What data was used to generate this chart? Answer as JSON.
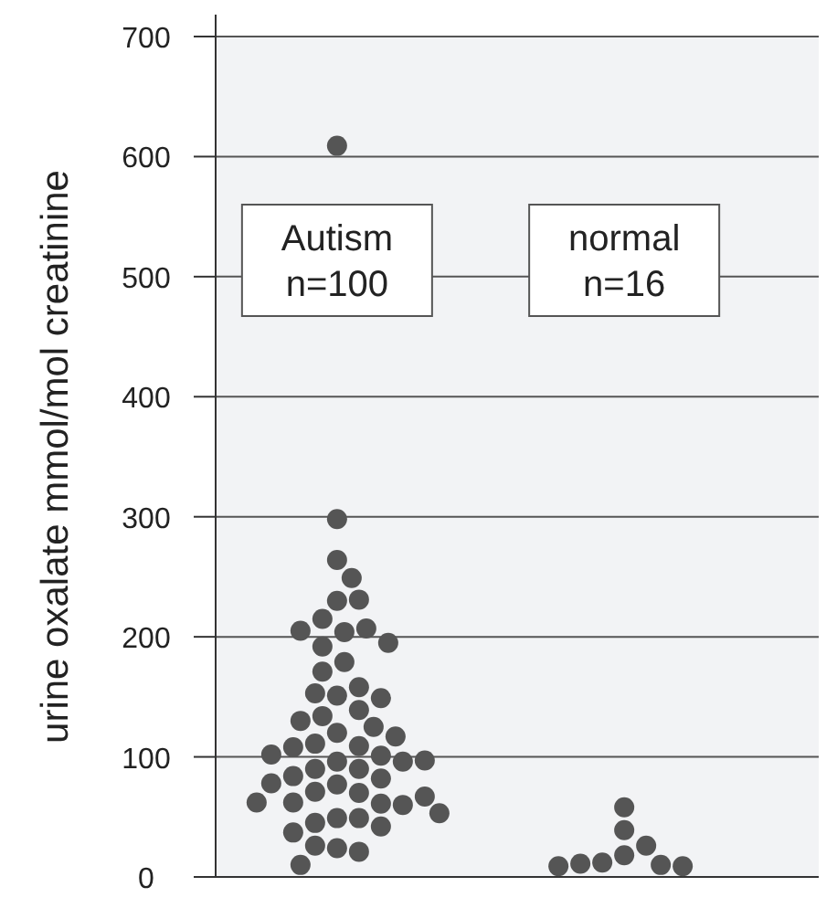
{
  "chart_data": {
    "type": "scatter",
    "ylabel": "urine oxalate mmol/mol creatinine",
    "categories": [
      "Autism n=100",
      "normal n=16"
    ],
    "ylim": [
      0,
      700
    ],
    "yticks": [
      0,
      100,
      200,
      300,
      400,
      500,
      600,
      700
    ],
    "grid": "y",
    "marker": "circle",
    "series": [
      {
        "color": "#555555",
        "x": [
          "Autism n=100",
          "Autism n=100",
          "Autism n=100",
          "Autism n=100",
          "Autism n=100",
          "Autism n=100",
          "Autism n=100",
          "Autism n=100",
          "Autism n=100",
          "Autism n=100",
          "Autism n=100",
          "Autism n=100",
          "Autism n=100",
          "Autism n=100",
          "Autism n=100",
          "Autism n=100",
          "Autism n=100",
          "Autism n=100",
          "Autism n=100",
          "Autism n=100",
          "Autism n=100",
          "Autism n=100",
          "Autism n=100",
          "Autism n=100",
          "Autism n=100",
          "Autism n=100",
          "Autism n=100",
          "Autism n=100",
          "Autism n=100",
          "Autism n=100",
          "Autism n=100",
          "Autism n=100",
          "Autism n=100",
          "Autism n=100",
          "Autism n=100",
          "Autism n=100",
          "Autism n=100",
          "Autism n=100",
          "Autism n=100",
          "Autism n=100",
          "Autism n=100",
          "Autism n=100",
          "Autism n=100",
          "Autism n=100",
          "Autism n=100",
          "Autism n=100",
          "Autism n=100",
          "Autism n=100",
          "Autism n=100",
          "Autism n=100",
          "Autism n=100",
          "Autism n=100",
          "Autism n=100",
          "Autism n=100",
          "Autism n=100"
        ],
        "values": [
          609,
          298,
          264,
          249,
          230,
          231,
          215,
          204,
          207,
          205,
          192,
          195,
          179,
          171,
          151,
          158,
          153,
          149,
          139,
          134,
          130,
          120,
          125,
          117,
          109,
          111,
          108,
          96,
          101,
          102,
          96,
          97,
          90,
          90,
          77,
          82,
          84,
          78,
          70,
          71,
          61,
          62,
          60,
          67,
          62,
          49,
          49,
          53,
          45,
          42,
          37,
          24,
          21,
          26,
          10
        ]
      },
      {
        "color": "#555555",
        "x": [
          "normal n=16",
          "normal n=16",
          "normal n=16",
          "normal n=16",
          "normal n=16",
          "normal n=16",
          "normal n=16",
          "normal n=16",
          "normal n=16"
        ],
        "values": [
          58,
          39,
          26,
          18,
          12,
          10,
          11,
          9,
          9
        ]
      }
    ]
  }
}
